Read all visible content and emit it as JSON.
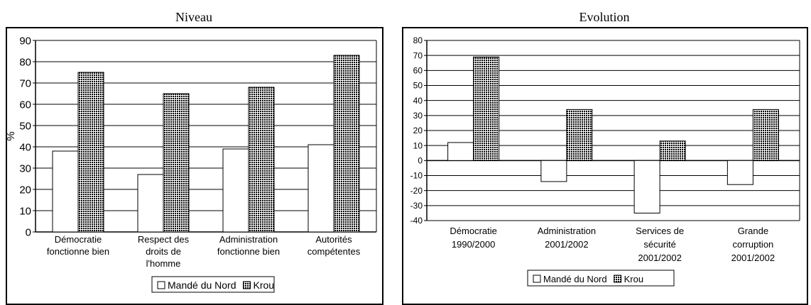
{
  "chart_data": [
    {
      "type": "bar",
      "title": "Niveau",
      "ylabel": "%",
      "xlabel": "",
      "ylim": [
        0,
        90
      ],
      "yticks": [
        0,
        10,
        20,
        30,
        40,
        50,
        60,
        70,
        80,
        90
      ],
      "grid": true,
      "legend": "bottom",
      "categories": [
        [
          "Démocratie",
          "fonctionne bien"
        ],
        [
          "Respect des",
          "droits de",
          "l'homme"
        ],
        [
          "Administration",
          "fonctionne bien"
        ],
        [
          "Autorités",
          "compétentes"
        ]
      ],
      "series": [
        {
          "name": "Mandé du Nord",
          "values": [
            38,
            27,
            39,
            41
          ],
          "fill": "#ffffff"
        },
        {
          "name": "Krou",
          "values": [
            75,
            65,
            68,
            83
          ],
          "fill": "checker"
        }
      ]
    },
    {
      "type": "bar",
      "title": "Evolution",
      "ylabel": "",
      "xlabel": "",
      "ylim": [
        -40,
        80
      ],
      "yticks": [
        -40,
        -30,
        -20,
        -10,
        0,
        10,
        20,
        30,
        40,
        50,
        60,
        70,
        80
      ],
      "grid": true,
      "legend": "bottom",
      "categories": [
        [
          "Démocratie",
          "1990/2000"
        ],
        [
          "Administration",
          "2001/2002"
        ],
        [
          "Services de",
          "sécurité",
          "2001/2002"
        ],
        [
          "Grande",
          "corruption",
          "2001/2002"
        ]
      ],
      "series": [
        {
          "name": "Mandé du Nord",
          "values": [
            12,
            -14,
            -35,
            -16
          ],
          "fill": "#ffffff"
        },
        {
          "name": "Krou",
          "values": [
            69,
            34,
            13,
            34
          ],
          "fill": "checker"
        }
      ]
    }
  ]
}
